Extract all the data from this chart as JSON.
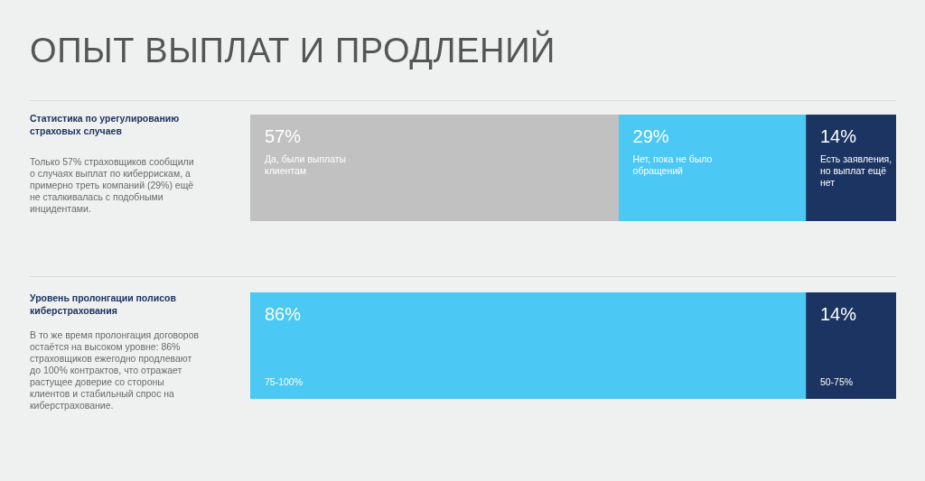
{
  "chart_data": [
    {
      "type": "bar",
      "orientation": "horizontal",
      "stacked": true,
      "title": "ОПЫТ ВЫПЛАТ И ПРОДЛЕНИЙ",
      "annotations": [
        "Статистика по урегулированию страховых случаев",
        "Только 57% страховщиков сообщили о случаях выплат по киберрискам, а примерно треть компаний (29%) ещё не сталкивалась с подобными инцидентами."
      ],
      "categories": [
        null
      ],
      "xlim": [
        0,
        100
      ],
      "tick_labels": false,
      "series": [
        {
          "name": "Да, были выплаты клиентам",
          "color": "#c1c1c1",
          "values": [
            57
          ],
          "value_labels": [
            "57%"
          ]
        },
        {
          "name": "Нет, пока не было обращений",
          "color": "#4bc8f4",
          "values": [
            29
          ],
          "value_labels": [
            "29%"
          ]
        },
        {
          "name": "Есть заявления, но выплат ещё нет",
          "color": "#1c3461",
          "values": [
            14
          ],
          "value_labels": [
            "14%"
          ]
        }
      ]
    },
    {
      "type": "bar",
      "orientation": "horizontal",
      "stacked": true,
      "annotations": [
        "Уровень пролонгации полисов киберстрахования",
        "В то же время пролонгация договоров остаётся на высоком уровне: 86% страховщиков ежегодно продлевают до 100% контрактов, что отражает растущее доверие со стороны клиентов и стабильный спрос на киберстрахование."
      ],
      "categories": [
        null
      ],
      "xlim": [
        0,
        100
      ],
      "tick_labels": false,
      "series": [
        {
          "name": "75-100%",
          "color": "#4bc8f4",
          "values": [
            86
          ],
          "value_labels": [
            "86%"
          ]
        },
        {
          "name": "50-75%",
          "color": "#1c3461",
          "values": [
            14
          ],
          "value_labels": [
            "14%"
          ]
        }
      ]
    }
  ]
}
